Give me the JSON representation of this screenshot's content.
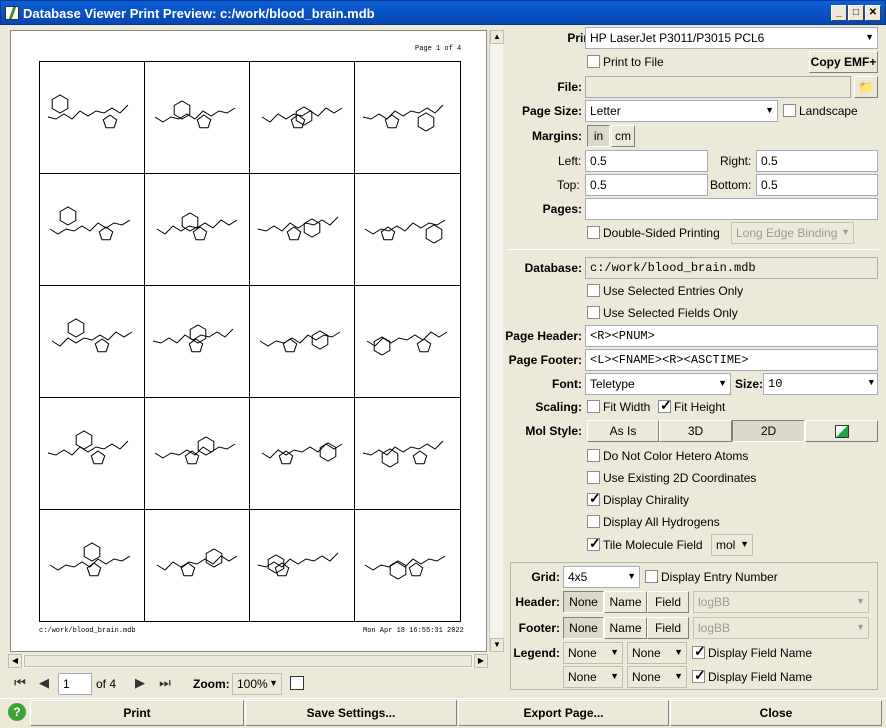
{
  "window": {
    "title": "Database Viewer Print Preview: c:/work/blood_brain.mdb"
  },
  "preview": {
    "page_number": "Page 1 of 4",
    "footer_left": "c:/work/blood_brain.mdb",
    "footer_right": "Mon Apr 18 16:55:31 2022"
  },
  "nav": {
    "current_page": "1",
    "of_label": "of 4",
    "zoom_label": "Zoom:",
    "zoom_value": "100%"
  },
  "printer": {
    "label": "Printer:",
    "value": "HP LaserJet P3011/P3015 PCL6",
    "print_to_file": "Print to File",
    "copy_emf": "Copy EMF+"
  },
  "file": {
    "label": "File:",
    "value": ""
  },
  "page_size": {
    "label": "Page Size:",
    "value": "Letter",
    "landscape": "Landscape"
  },
  "margins": {
    "label": "Margins:",
    "unit_in": "in",
    "unit_cm": "cm",
    "left_label": "Left:",
    "left": "0.5",
    "right_label": "Right:",
    "right": "0.5",
    "top_label": "Top:",
    "top": "0.5",
    "bottom_label": "Bottom:",
    "bottom": "0.5"
  },
  "pages": {
    "label": "Pages:",
    "value": "",
    "double_sided": "Double-Sided Printing",
    "binding": "Long Edge Binding"
  },
  "database": {
    "label": "Database:",
    "value": "c:/work/blood_brain.mdb",
    "selected_entries": "Use Selected Entries Only",
    "selected_fields": "Use Selected Fields Only"
  },
  "header_footer": {
    "header_label": "Page Header:",
    "header_value": "<R><PNUM>",
    "footer_label": "Page Footer:",
    "footer_value": "<L><FNAME><R><ASCTIME>"
  },
  "font": {
    "label": "Font:",
    "value": "Teletype",
    "size_label": "Size:",
    "size": "10"
  },
  "scaling": {
    "label": "Scaling:",
    "fit_width": "Fit Width",
    "fit_height": "Fit Height"
  },
  "mol_style": {
    "label": "Mol Style:",
    "as_is": "As Is",
    "three_d": "3D",
    "two_d": "2D"
  },
  "options": {
    "no_color": "Do Not Color Hetero Atoms",
    "existing_2d": "Use Existing 2D Coordinates",
    "chirality": "Display Chirality",
    "hydrogens": "Display All Hydrogens",
    "tile": "Tile Molecule Field",
    "tile_value": "mol"
  },
  "grid": {
    "label": "Grid:",
    "value": "4x5",
    "entry_number": "Display Entry Number"
  },
  "header_row": {
    "label": "Header:",
    "none": "None",
    "name": "Name",
    "field": "Field",
    "field_value": "logBB"
  },
  "footer_row": {
    "label": "Footer:",
    "none": "None",
    "name": "Name",
    "field": "Field",
    "field_value": "logBB"
  },
  "legend": {
    "label": "Legend:",
    "r1a": "None",
    "r1b": "None",
    "r1_display": "Display Field Name",
    "r2a": "None",
    "r2b": "None",
    "r2_display": "Display Field Name"
  },
  "buttons": {
    "print": "Print",
    "save": "Save Settings...",
    "export": "Export Page...",
    "close": "Close",
    "help": "?"
  }
}
